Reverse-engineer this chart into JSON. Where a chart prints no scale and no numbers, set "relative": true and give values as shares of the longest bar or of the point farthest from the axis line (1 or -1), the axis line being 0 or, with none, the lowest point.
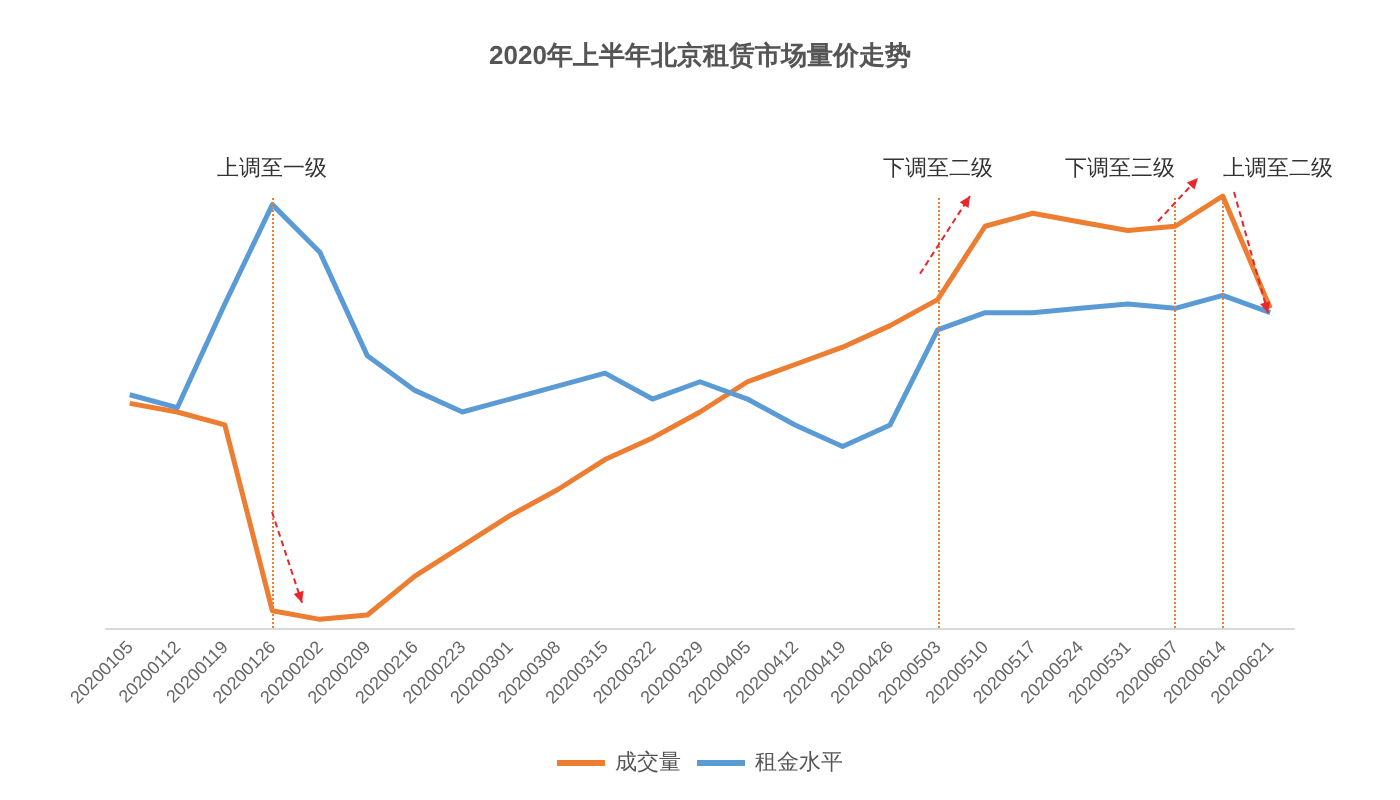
{
  "chart_data": {
    "type": "line",
    "title": "2020年上半年北京租赁市场量价走势",
    "relative": true,
    "categories": [
      "20200105",
      "20200112",
      "20200119",
      "20200126",
      "20200202",
      "20200209",
      "20200216",
      "20200223",
      "20200301",
      "20200308",
      "20200315",
      "20200322",
      "20200329",
      "20200405",
      "20200412",
      "20200419",
      "20200426",
      "20200503",
      "20200510",
      "20200517",
      "20200524",
      "20200531",
      "20200607",
      "20200614",
      "20200621"
    ],
    "series": [
      {
        "name": "成交量",
        "color": "#ed7d31",
        "values": [
          0.52,
          0.5,
          0.47,
          0.04,
          0.02,
          0.03,
          0.12,
          0.19,
          0.26,
          0.32,
          0.39,
          0.44,
          0.5,
          0.57,
          0.61,
          0.65,
          0.7,
          0.76,
          0.93,
          0.96,
          0.94,
          0.92,
          0.93,
          1,
          0.74
        ]
      },
      {
        "name": "租金水平",
        "color": "#5b9bd5",
        "values": [
          0.54,
          0.51,
          0.75,
          0.98,
          0.87,
          0.63,
          0.55,
          0.5,
          0.53,
          0.56,
          0.59,
          0.53,
          0.57,
          0.53,
          0.47,
          0.42,
          0.47,
          0.69,
          0.73,
          0.73,
          0.74,
          0.75,
          0.74,
          0.77,
          0.73
        ]
      }
    ],
    "ref_lines": [
      {
        "axis": "x",
        "value": "20200126",
        "label": "上调至一级",
        "color": "#ed7d31",
        "line_style": "dotted"
      },
      {
        "axis": "x",
        "value": "20200503",
        "label": "下调至二级",
        "color": "#ed7d31",
        "line_style": "dotted"
      },
      {
        "axis": "x",
        "value": "20200607",
        "label": "下调至三级",
        "color": "#ed7d31",
        "line_style": "dotted"
      },
      {
        "axis": "x",
        "value": "20200614",
        "label": "上调至二级",
        "color": "#ed7d31",
        "line_style": "dotted"
      }
    ],
    "grid": false,
    "legend": "bottom",
    "marker": "none",
    "line_style": "solid"
  }
}
